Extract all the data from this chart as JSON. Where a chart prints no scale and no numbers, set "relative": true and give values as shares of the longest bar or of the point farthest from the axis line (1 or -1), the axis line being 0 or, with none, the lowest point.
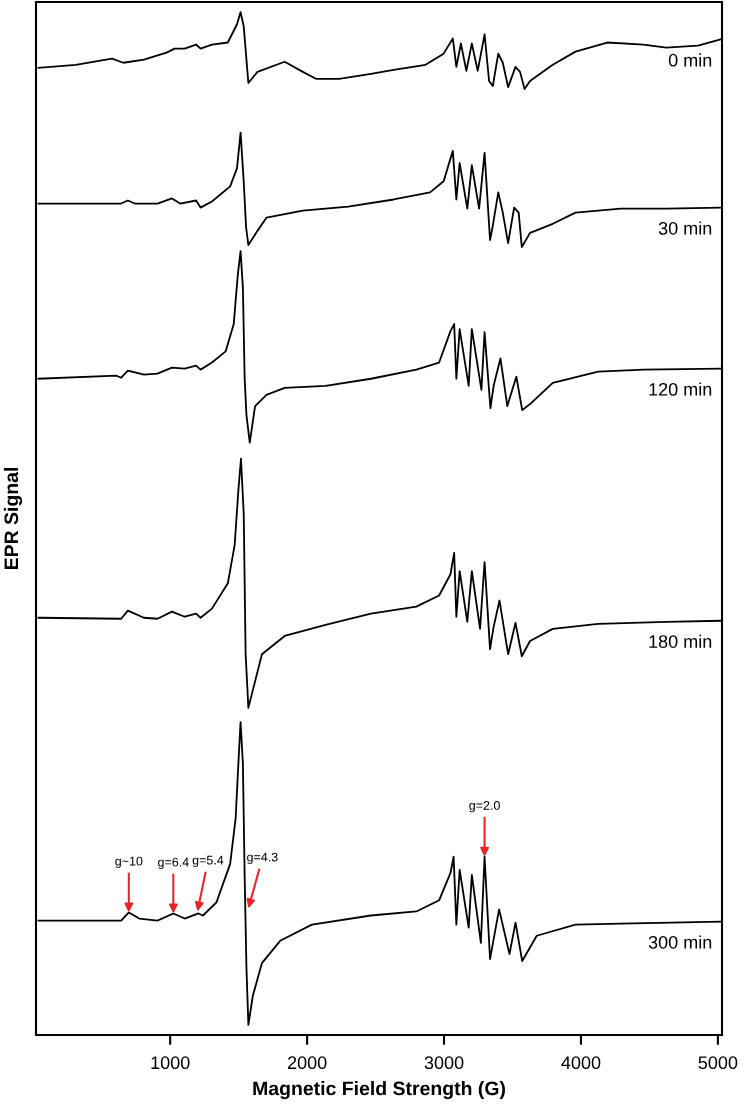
{
  "chart_data": {
    "type": "line",
    "relative": true,
    "xlabel": "Magnetic Field Strength (G)",
    "ylabel": "EPR Signal",
    "xlim": [
      20,
      5030
    ],
    "xticks": [
      1000,
      2000,
      3000,
      4000,
      5000
    ],
    "grid": false,
    "legend": false,
    "marker": "none",
    "line_style": "solid",
    "series": [
      {
        "name": "0 min",
        "color": "#000000",
        "x": [
          38,
          310,
          575,
          658,
          808,
          973,
          1033,
          1106,
          1189,
          1222,
          1305,
          1421,
          1488,
          1514,
          1537,
          1571,
          1637,
          1836,
          1969,
          2068,
          2234,
          2466,
          2632,
          2865,
          2997,
          3064,
          3090,
          3123,
          3163,
          3203,
          3246,
          3296,
          3329,
          3356,
          3396,
          3429,
          3468,
          3522,
          3555,
          3588,
          3628,
          3794,
          3960,
          4192,
          4457,
          4623,
          4855,
          5020
        ],
        "values": [
          0.945,
          0.948,
          0.954,
          0.95,
          0.953,
          0.96,
          0.964,
          0.964,
          0.968,
          0.964,
          0.968,
          0.97,
          0.988,
          1.0,
          0.986,
          0.93,
          0.941,
          0.951,
          0.941,
          0.934,
          0.934,
          0.939,
          0.943,
          0.948,
          0.959,
          0.974,
          0.946,
          0.969,
          0.942,
          0.969,
          0.942,
          0.978,
          0.932,
          0.927,
          0.959,
          0.95,
          0.926,
          0.946,
          0.941,
          0.924,
          0.932,
          0.948,
          0.961,
          0.97,
          0.968,
          0.965,
          0.967,
          0.973
        ]
      },
      {
        "name": "30 min",
        "color": "#000000",
        "x": [
          38,
          642,
          691,
          741,
          907,
          1013,
          1073,
          1189,
          1222,
          1305,
          1438,
          1488,
          1514,
          1537,
          1554,
          1571,
          1637,
          1703,
          1969,
          2300,
          2632,
          2898,
          2997,
          3064,
          3090,
          3114,
          3170,
          3203,
          3256,
          3296,
          3336,
          3356,
          3396,
          3429,
          3468,
          3512,
          3545,
          3568,
          3628,
          3794,
          3960,
          4291,
          4623,
          5020
        ],
        "values": [
          0.811,
          0.811,
          0.814,
          0.811,
          0.811,
          0.816,
          0.811,
          0.814,
          0.807,
          0.813,
          0.828,
          0.846,
          0.881,
          0.833,
          0.788,
          0.77,
          0.784,
          0.797,
          0.804,
          0.808,
          0.815,
          0.822,
          0.833,
          0.863,
          0.815,
          0.851,
          0.806,
          0.849,
          0.806,
          0.861,
          0.775,
          0.789,
          0.822,
          0.802,
          0.772,
          0.807,
          0.802,
          0.768,
          0.782,
          0.791,
          0.802,
          0.806,
          0.806,
          0.807
        ]
      },
      {
        "name": "120 min",
        "color": "#000000",
        "x": [
          38,
          608,
          642,
          691,
          808,
          907,
          1013,
          1106,
          1189,
          1222,
          1305,
          1405,
          1464,
          1494,
          1514,
          1531,
          1544,
          1557,
          1581,
          1620,
          1703,
          1836,
          2135,
          2466,
          2798,
          2964,
          3047,
          3074,
          3090,
          3114,
          3180,
          3203,
          3273,
          3296,
          3339,
          3362,
          3412,
          3462,
          3528,
          3571,
          3628,
          3794,
          4126,
          4457,
          5020
        ],
        "values": [
          0.638,
          0.641,
          0.639,
          0.646,
          0.642,
          0.643,
          0.649,
          0.648,
          0.651,
          0.647,
          0.654,
          0.665,
          0.692,
          0.741,
          0.764,
          0.728,
          0.638,
          0.602,
          0.575,
          0.611,
          0.622,
          0.629,
          0.631,
          0.638,
          0.647,
          0.654,
          0.685,
          0.692,
          0.638,
          0.687,
          0.631,
          0.687,
          0.627,
          0.684,
          0.609,
          0.631,
          0.658,
          0.611,
          0.64,
          0.607,
          0.613,
          0.634,
          0.645,
          0.647,
          0.648
        ]
      },
      {
        "name": "180 min",
        "color": "#000000",
        "x": [
          38,
          642,
          691,
          808,
          907,
          1013,
          1106,
          1189,
          1222,
          1305,
          1421,
          1471,
          1498,
          1517,
          1537,
          1551,
          1571,
          1670,
          1836,
          2135,
          2466,
          2798,
          2964,
          3047,
          3074,
          3090,
          3114,
          3170,
          3203,
          3263,
          3296,
          3336,
          3362,
          3405,
          3468,
          3522,
          3568,
          3628,
          3794,
          4126,
          4623,
          5020
        ],
        "values": [
          0.402,
          0.401,
          0.409,
          0.402,
          0.401,
          0.408,
          0.403,
          0.406,
          0.402,
          0.411,
          0.436,
          0.474,
          0.528,
          0.559,
          0.505,
          0.366,
          0.313,
          0.366,
          0.384,
          0.395,
          0.406,
          0.413,
          0.424,
          0.445,
          0.466,
          0.403,
          0.448,
          0.398,
          0.448,
          0.391,
          0.457,
          0.371,
          0.393,
          0.419,
          0.366,
          0.397,
          0.364,
          0.379,
          0.391,
          0.396,
          0.398,
          0.399
        ]
      },
      {
        "name": "300 min",
        "color": "#000000",
        "x": [
          38,
          642,
          698,
          774,
          907,
          1023,
          1106,
          1206,
          1239,
          1338,
          1438,
          1478,
          1498,
          1514,
          1531,
          1544,
          1557,
          1571,
          1604,
          1670,
          1803,
          2035,
          2466,
          2798,
          2964,
          3047,
          3070,
          3090,
          3114,
          3180,
          3203,
          3269,
          3296,
          3336,
          3402,
          3478,
          3522,
          3571,
          3677,
          3960,
          4291,
          5020
        ],
        "values": [
          0.103,
          0.103,
          0.111,
          0.105,
          0.103,
          0.11,
          0.105,
          0.11,
          0.108,
          0.121,
          0.159,
          0.204,
          0.258,
          0.299,
          0.258,
          0.146,
          0.056,
          0.0,
          0.029,
          0.061,
          0.083,
          0.099,
          0.108,
          0.112,
          0.123,
          0.15,
          0.166,
          0.099,
          0.153,
          0.096,
          0.148,
          0.081,
          0.166,
          0.065,
          0.114,
          0.07,
          0.101,
          0.063,
          0.088,
          0.099,
          0.1,
          0.102
        ]
      }
    ],
    "annotations": [
      {
        "text": "g~10",
        "x": 698,
        "y": 0.111
      },
      {
        "text": "g=6.4",
        "x": 1023,
        "y": 0.11
      },
      {
        "text": "g=5.4",
        "x": 1199,
        "y": 0.112
      },
      {
        "text": "g=4.3",
        "x": 1571,
        "y": 0.115
      },
      {
        "text": "g=2.0",
        "x": 3296,
        "y": 0.166
      }
    ]
  }
}
